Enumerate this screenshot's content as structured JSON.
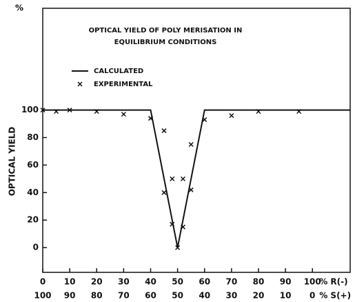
{
  "chart_data": {
    "type": "line",
    "title": [
      "OPTICAL YIELD OF POLY MERISATION IN",
      "EQUILIBRIUM CONDITIONS"
    ],
    "ylabel": "OPTICAL  YIELD",
    "yunit": "%",
    "xlabel": "% R(-)",
    "x2label": "% S(+)",
    "xlim": [
      0,
      114
    ],
    "ylim": [
      -18,
      174
    ],
    "xticks": [
      0,
      10,
      20,
      30,
      40,
      50,
      60,
      70,
      80,
      90,
      100
    ],
    "x2ticks": [
      {
        "value": 0,
        "label": "100"
      },
      {
        "value": 10,
        "label": "90"
      },
      {
        "value": 20,
        "label": "80"
      },
      {
        "value": 30,
        "label": "70"
      },
      {
        "value": 40,
        "label": "60"
      },
      {
        "value": 50,
        "label": "50"
      },
      {
        "value": 60,
        "label": "40"
      },
      {
        "value": 70,
        "label": "30"
      },
      {
        "value": 80,
        "label": "20"
      },
      {
        "value": 90,
        "label": "10"
      },
      {
        "value": 100,
        "label": "0"
      }
    ],
    "yticks": [
      0,
      20,
      40,
      60,
      80,
      100
    ],
    "color": "#111",
    "series": [
      {
        "name": "CALCULATED",
        "style": "line",
        "x": [
          0,
          40,
          50,
          60,
          114
        ],
        "values": [
          100,
          100,
          0,
          100,
          100
        ]
      },
      {
        "name": "EXPERIMENTAL",
        "style": "cross",
        "x": [
          0,
          5,
          10,
          20,
          30,
          40,
          45,
          45,
          48,
          48,
          50,
          52,
          52,
          55,
          55,
          60,
          70,
          80,
          95
        ],
        "values": [
          100,
          99,
          100,
          99,
          97,
          94,
          85,
          40,
          50,
          17,
          0,
          50,
          15,
          75,
          42,
          93,
          96,
          99,
          99
        ]
      }
    ]
  }
}
